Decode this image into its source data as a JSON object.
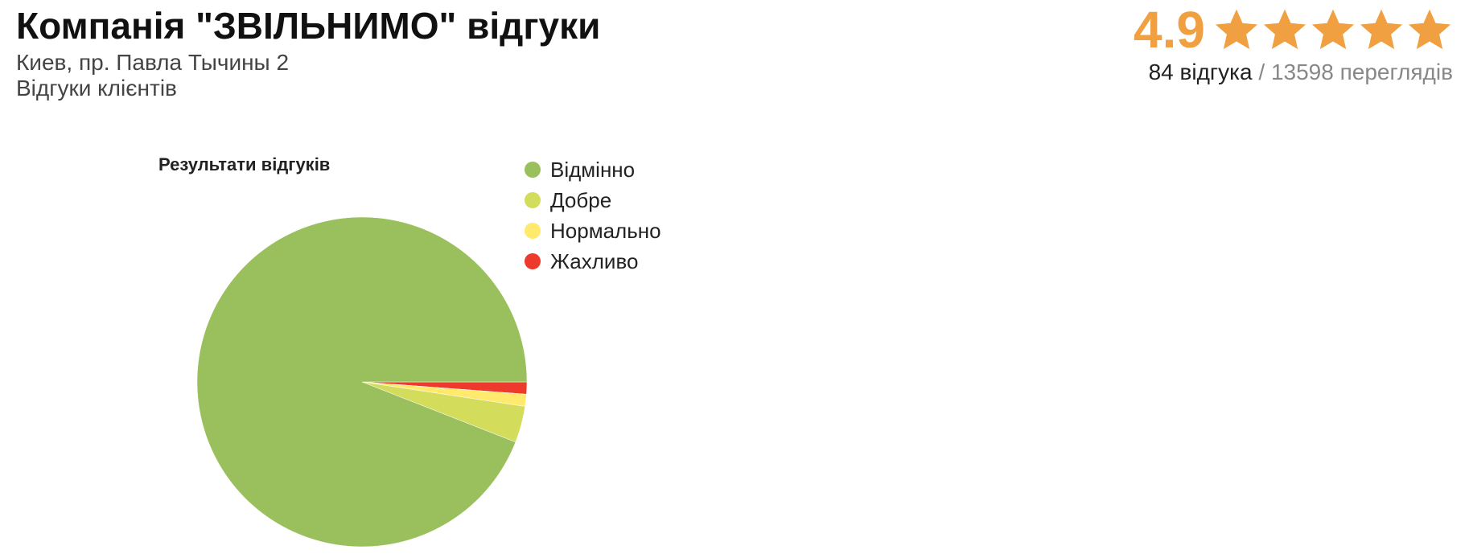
{
  "company": {
    "title": "Компанія \"ЗВІЛЬНИМО\" відгуки",
    "address": "Киев, пр. Павла Тычины 2",
    "subtitle": "Відгуки клієнтів"
  },
  "rating": {
    "value": "4.9",
    "stars_filled": 5,
    "stars_total": 5,
    "star_color": "#f0a040",
    "reviews_label": "84 відгука",
    "separator": " / ",
    "views_label": "13598 переглядів"
  },
  "chart_data": {
    "type": "pie",
    "title": "Результати відгуків",
    "legend_position": "right",
    "categories": [
      "Відмінно",
      "Добре",
      "Нормально",
      "Жахливо"
    ],
    "values": [
      79,
      3,
      1,
      1
    ],
    "colors": [
      "#99c05c",
      "#d4dc5c",
      "#ffea6e",
      "#ee3a2c"
    ]
  }
}
